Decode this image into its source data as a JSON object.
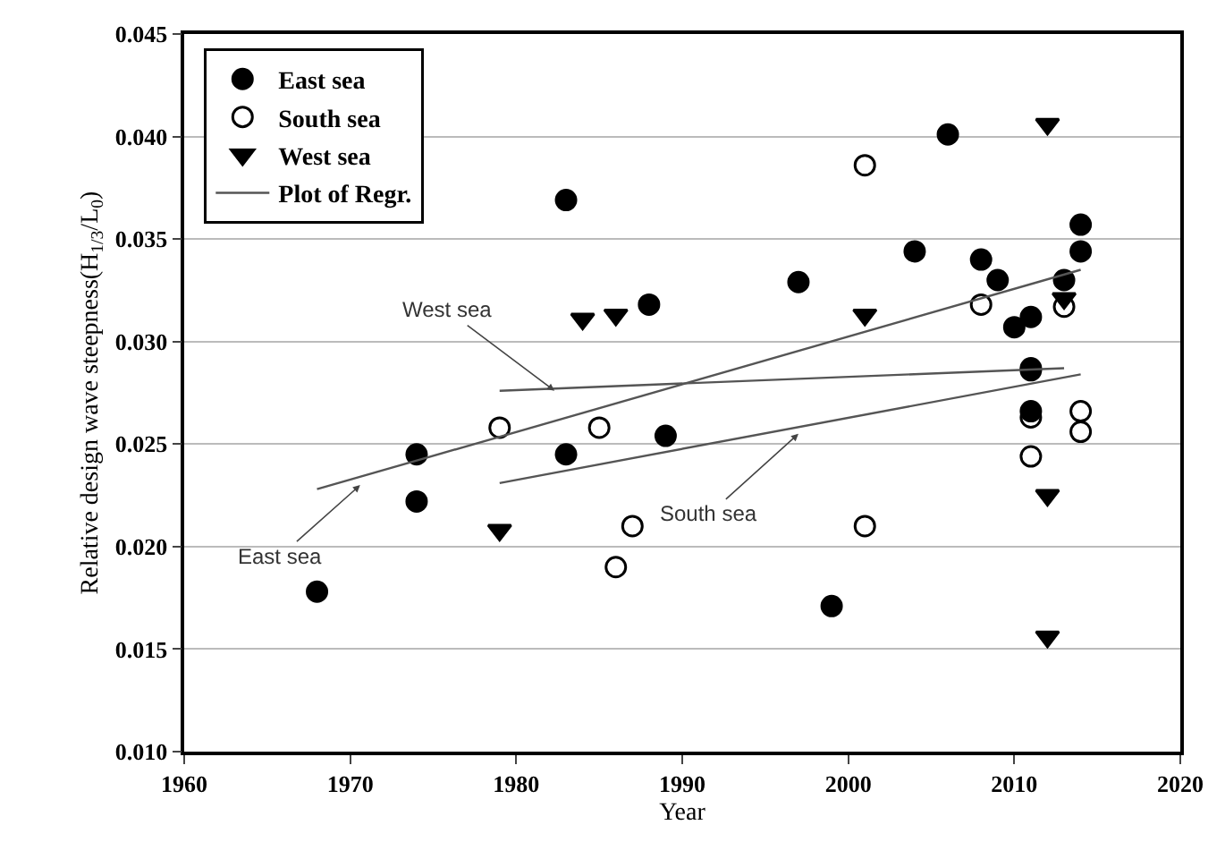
{
  "chart_data": {
    "type": "scatter",
    "xlabel": "Year",
    "ylabel": "Relative design wave steepness(H$_{1/3}$/L$_{0}$)",
    "xlim": [
      1960,
      2020
    ],
    "xticks": [
      1960,
      1970,
      1980,
      1990,
      2000,
      2010,
      2020
    ],
    "ylim": [
      0.01,
      0.045
    ],
    "yticks": [
      {
        "value": 0.01,
        "label": "0.010"
      },
      {
        "value": 0.015,
        "label": "0.015"
      },
      {
        "value": 0.02,
        "label": "0.020"
      },
      {
        "value": 0.025,
        "label": "0.025"
      },
      {
        "value": 0.03,
        "label": "0.030"
      },
      {
        "value": 0.035,
        "label": "0.035"
      },
      {
        "value": 0.04,
        "label": "0.040"
      },
      {
        "value": 0.045,
        "label": "0.045"
      }
    ],
    "grid": "y",
    "legend": "top left",
    "series": [
      {
        "name": "East sea",
        "marker": "circle",
        "color": "#000000",
        "x": [
          1968,
          1974,
          1974,
          1983,
          1989,
          1983,
          1988,
          1997,
          2006,
          2004,
          2008,
          2009,
          2010,
          2011,
          2014,
          2014,
          2013,
          1999,
          2011,
          2011
        ],
        "values": [
          0.0178,
          0.0245,
          0.0222,
          0.0245,
          0.0254,
          0.0369,
          0.0318,
          0.0329,
          0.0401,
          0.0344,
          0.034,
          0.033,
          0.0307,
          0.0312,
          0.0357,
          0.0344,
          0.033,
          0.0171,
          0.0266,
          0.0286
        ]
      },
      {
        "name": "South sea",
        "marker": "circle-open",
        "color": "#000000",
        "x": [
          1979,
          1985,
          1987,
          1986,
          2001,
          2008,
          2013,
          2011,
          2011,
          2011,
          2014,
          2014,
          2001
        ],
        "values": [
          0.0258,
          0.0258,
          0.021,
          0.019,
          0.0386,
          0.0318,
          0.0317,
          0.0287,
          0.0263,
          0.0244,
          0.0266,
          0.0256,
          0.021
        ]
      },
      {
        "name": "West sea",
        "marker": "triangle-down",
        "color": "#000000",
        "x": [
          1979,
          1984,
          1986,
          2001,
          2012,
          2012,
          2012,
          2013
        ],
        "values": [
          0.0208,
          0.0311,
          0.0313,
          0.0313,
          0.0406,
          0.0225,
          0.0156,
          0.0321
        ]
      },
      {
        "name": "Plot of Regr.",
        "type": "line",
        "color": "#555555",
        "x": [
          1968,
          2014
        ],
        "values": [
          0.0228,
          0.0335
        ]
      },
      {
        "type": "line",
        "color": "#555555",
        "x": [
          1979,
          2013
        ],
        "values": [
          0.0276,
          0.0287
        ]
      },
      {
        "type": "line",
        "color": "#555555",
        "x": [
          1979,
          2014
        ],
        "values": [
          0.0231,
          0.0284
        ]
      }
    ],
    "annotations": [
      {
        "text": "West sea",
        "x": 1982.3,
        "y": 0.0276
      },
      {
        "text": "East sea",
        "x": 1970.6,
        "y": 0.023
      },
      {
        "text": "South sea",
        "x": 1997,
        "y": 0.0255
      }
    ]
  }
}
